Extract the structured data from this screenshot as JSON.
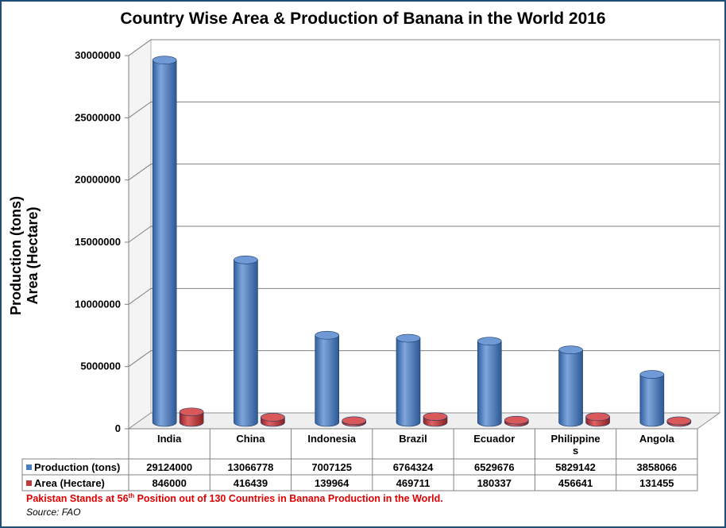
{
  "title": "Country Wise Area & Production of Banana in the World 2016",
  "ylabel_line1": "Production (tons)",
  "ylabel_line2": "Area (Hectare)",
  "note": {
    "prefix": "Pakistan Stands at 56",
    "sup": "th",
    "suffix": " Position out of 130 Countries in Banana Production in the World."
  },
  "source": "Source: FAO",
  "colors": {
    "production": "#4a7ec4",
    "area": "#c0393b",
    "grid": "#808080"
  },
  "chart_data": {
    "type": "bar",
    "title": "Country Wise Area & Production of Banana in the World 2016",
    "ylabel": "Production (tons) Area (Hectare)",
    "xlabel": "",
    "ylim": [
      0,
      30000000
    ],
    "yticks": [
      "0",
      "5000000",
      "10000000",
      "15000000",
      "20000000",
      "25000000",
      "30000000"
    ],
    "grid": true,
    "legend": "data table, left of rows",
    "categories": [
      "India",
      "China",
      "Indonesia",
      "Brazil",
      "Ecuador",
      "Philippines",
      "Angola"
    ],
    "category_labels": [
      "India",
      "China",
      "Indonesia",
      "Brazil",
      "Ecuador",
      "Philippine\ns",
      "Angola"
    ],
    "series": [
      {
        "name": "Production (tons)",
        "values": [
          29124000,
          13066778,
          7007125,
          6764324,
          6529676,
          5829142,
          3858066
        ]
      },
      {
        "name": "Area (Hectare)",
        "values": [
          846000,
          416439,
          139964,
          469711,
          180337,
          456641,
          131455
        ]
      }
    ]
  }
}
